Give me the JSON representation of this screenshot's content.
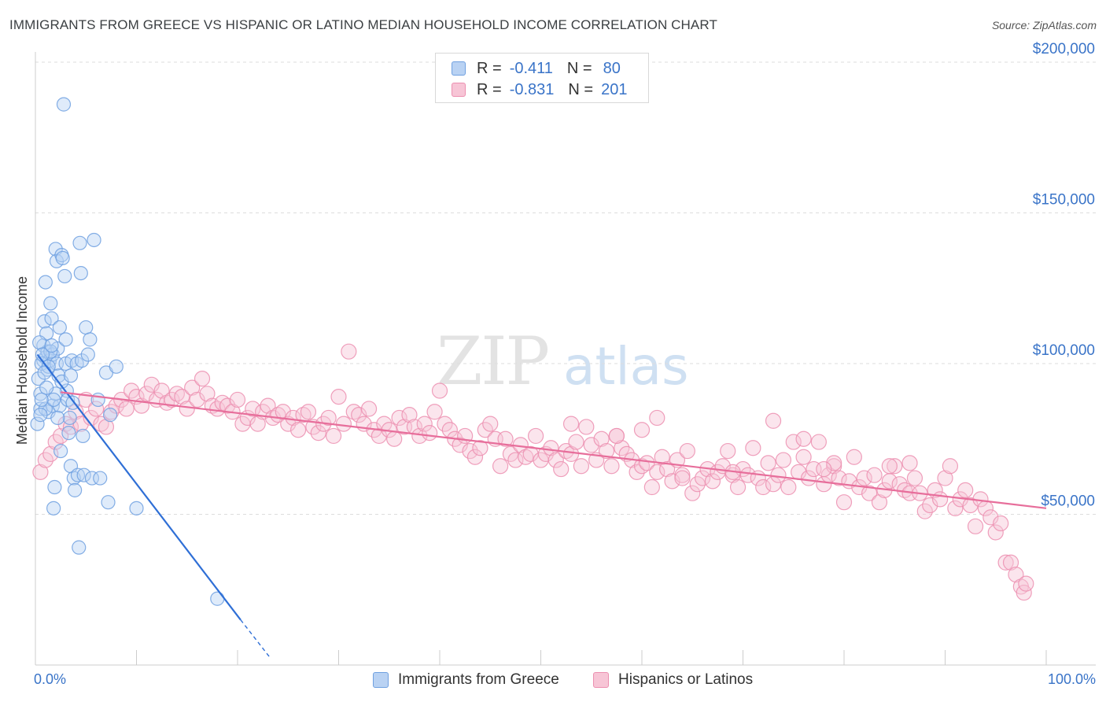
{
  "title": "IMMIGRANTS FROM GREECE VS HISPANIC OR LATINO MEDIAN HOUSEHOLD INCOME CORRELATION CHART",
  "source": "Source: ZipAtlas.com",
  "watermark": {
    "zip": "ZIP",
    "atlas": "atlas"
  },
  "legend": {
    "rows": [
      {
        "r_label": "R =",
        "r_value": "-0.411",
        "n_label": "N =",
        "n_value": "80",
        "color": "#6fa0e0",
        "fill": "#b9d2f3"
      },
      {
        "r_label": "R =",
        "r_value": "-0.831",
        "n_label": "N =",
        "n_value": "201",
        "color": "#ec8fb0",
        "fill": "#f7c5d6"
      }
    ]
  },
  "bottom_legend": [
    {
      "label": "Immigrants from Greece",
      "color": "#6fa0e0",
      "fill": "#b9d2f3"
    },
    {
      "label": "Hispanics or Latinos",
      "color": "#ec8fb0",
      "fill": "#f7c5d6"
    }
  ],
  "chart_data": {
    "type": "scatter",
    "title": "IMMIGRANTS FROM GREECE VS HISPANIC OR LATINO MEDIAN HOUSEHOLD INCOME CORRELATION CHART",
    "xlabel": "",
    "ylabel": "Median Household Income",
    "xlim": [
      0,
      100
    ],
    "ylim": [
      0,
      210000
    ],
    "x_tick_labels": [
      "0.0%",
      "100.0%"
    ],
    "y_ticks": [
      50000,
      100000,
      150000,
      200000
    ],
    "y_tick_labels": [
      "$50,000",
      "$100,000",
      "$150,000",
      "$200,000"
    ],
    "grid": "horizontal dashed",
    "series": [
      {
        "name": "Immigrants from Greece",
        "color": "#6fa0e0",
        "fill": "#b9d2f3",
        "trend": {
          "x": [
            0.2,
            20.3
          ],
          "y": [
            103000,
            15000
          ],
          "extended_to": [
            23.2,
            2500
          ]
        },
        "points": [
          [
            0.2,
            80000
          ],
          [
            0.5,
            90000
          ],
          [
            0.5,
            85000
          ],
          [
            0.8,
            101000
          ],
          [
            0.8,
            106000
          ],
          [
            0.9,
            114000
          ],
          [
            1.0,
            102000
          ],
          [
            1.0,
            127000
          ],
          [
            1.1,
            110000
          ],
          [
            1.2,
            104000
          ],
          [
            1.2,
            98000
          ],
          [
            1.3,
            84000
          ],
          [
            1.4,
            101000
          ],
          [
            1.5,
            120000
          ],
          [
            1.6,
            115000
          ],
          [
            1.7,
            103000
          ],
          [
            1.7,
            86000
          ],
          [
            1.8,
            52000
          ],
          [
            1.9,
            59000
          ],
          [
            2.0,
            138000
          ],
          [
            2.1,
            134000
          ],
          [
            2.1,
            100000
          ],
          [
            2.2,
            105000
          ],
          [
            2.3,
            96000
          ],
          [
            2.4,
            86000
          ],
          [
            2.5,
            71000
          ],
          [
            2.6,
            136000
          ],
          [
            2.7,
            135000
          ],
          [
            2.8,
            186000
          ],
          [
            2.9,
            129000
          ],
          [
            3.0,
            100000
          ],
          [
            3.1,
            91000
          ],
          [
            3.2,
            88000
          ],
          [
            3.3,
            77000
          ],
          [
            3.4,
            82000
          ],
          [
            3.5,
            66000
          ],
          [
            3.6,
            101000
          ],
          [
            3.7,
            87000
          ],
          [
            3.8,
            62000
          ],
          [
            3.9,
            58000
          ],
          [
            4.1,
            100000
          ],
          [
            4.2,
            63000
          ],
          [
            4.3,
            39000
          ],
          [
            4.4,
            140000
          ],
          [
            4.5,
            130000
          ],
          [
            4.6,
            101000
          ],
          [
            4.7,
            76000
          ],
          [
            4.8,
            63000
          ],
          [
            5.0,
            112000
          ],
          [
            5.2,
            103000
          ],
          [
            5.4,
            108000
          ],
          [
            5.6,
            62000
          ],
          [
            5.8,
            141000
          ],
          [
            6.2,
            88000
          ],
          [
            6.4,
            62000
          ],
          [
            7.0,
            97000
          ],
          [
            7.2,
            54000
          ],
          [
            7.4,
            83000
          ],
          [
            8.0,
            99000
          ],
          [
            10.0,
            52000
          ],
          [
            18.0,
            22000
          ],
          [
            0.3,
            95000
          ],
          [
            0.6,
            100000
          ],
          [
            1.0,
            85000
          ],
          [
            1.5,
            104000
          ],
          [
            2.0,
            90000
          ],
          [
            0.4,
            107000
          ],
          [
            0.7,
            103000
          ],
          [
            1.3,
            99000
          ],
          [
            2.6,
            94000
          ],
          [
            3.0,
            108000
          ],
          [
            0.5,
            83000
          ],
          [
            1.1,
            92000
          ],
          [
            1.8,
            88000
          ],
          [
            2.2,
            82000
          ],
          [
            0.9,
            97000
          ],
          [
            1.6,
            106000
          ],
          [
            2.4,
            112000
          ],
          [
            3.5,
            96000
          ],
          [
            0.6,
            88000
          ]
        ]
      },
      {
        "name": "Hispanics or Latinos",
        "color": "#ec8fb0",
        "fill": "#f7c5d6",
        "trend": {
          "x": [
            2.5,
            100
          ],
          "y": [
            90500,
            52000
          ]
        },
        "points": [
          [
            0.5,
            64000
          ],
          [
            1.0,
            68000
          ],
          [
            1.5,
            70000
          ],
          [
            2.0,
            74000
          ],
          [
            2.5,
            76000
          ],
          [
            3.0,
            80000
          ],
          [
            3.5,
            79000
          ],
          [
            4.0,
            84000
          ],
          [
            4.5,
            80000
          ],
          [
            5.0,
            88000
          ],
          [
            5.5,
            82000
          ],
          [
            6.0,
            85000
          ],
          [
            6.5,
            80000
          ],
          [
            7.0,
            79000
          ],
          [
            7.5,
            84000
          ],
          [
            8.0,
            86000
          ],
          [
            8.5,
            88000
          ],
          [
            9.0,
            85000
          ],
          [
            9.5,
            91000
          ],
          [
            10.0,
            89000
          ],
          [
            10.5,
            86000
          ],
          [
            11.0,
            90000
          ],
          [
            11.5,
            93000
          ],
          [
            12.0,
            88000
          ],
          [
            12.5,
            91000
          ],
          [
            13.0,
            87000
          ],
          [
            13.5,
            88000
          ],
          [
            14.0,
            90000
          ],
          [
            14.5,
            89000
          ],
          [
            15.0,
            85000
          ],
          [
            15.5,
            92000
          ],
          [
            16.0,
            88000
          ],
          [
            16.5,
            95000
          ],
          [
            17.0,
            90000
          ],
          [
            17.5,
            86000
          ],
          [
            18.0,
            85000
          ],
          [
            18.5,
            87000
          ],
          [
            19.0,
            86000
          ],
          [
            19.5,
            84000
          ],
          [
            20.0,
            88000
          ],
          [
            20.5,
            80000
          ],
          [
            21.0,
            82000
          ],
          [
            21.5,
            85000
          ],
          [
            22.0,
            80000
          ],
          [
            22.5,
            84000
          ],
          [
            23.0,
            86000
          ],
          [
            23.5,
            82000
          ],
          [
            24.0,
            83000
          ],
          [
            24.5,
            84000
          ],
          [
            25.0,
            80000
          ],
          [
            25.5,
            82000
          ],
          [
            26.0,
            78000
          ],
          [
            26.5,
            83000
          ],
          [
            27.0,
            84000
          ],
          [
            27.5,
            79000
          ],
          [
            28.0,
            77000
          ],
          [
            28.5,
            80000
          ],
          [
            29.0,
            82000
          ],
          [
            29.5,
            76000
          ],
          [
            30.0,
            89000
          ],
          [
            30.5,
            80000
          ],
          [
            31.0,
            104000
          ],
          [
            31.5,
            84000
          ],
          [
            32.0,
            83000
          ],
          [
            32.5,
            80000
          ],
          [
            33.0,
            85000
          ],
          [
            33.5,
            78000
          ],
          [
            34.0,
            76000
          ],
          [
            34.5,
            80000
          ],
          [
            35.0,
            78000
          ],
          [
            35.5,
            75000
          ],
          [
            36.0,
            82000
          ],
          [
            36.5,
            79000
          ],
          [
            37.0,
            83000
          ],
          [
            37.5,
            79000
          ],
          [
            38.0,
            76000
          ],
          [
            38.5,
            80000
          ],
          [
            39.0,
            77000
          ],
          [
            39.5,
            84000
          ],
          [
            40.0,
            91000
          ],
          [
            40.5,
            80000
          ],
          [
            41.0,
            78000
          ],
          [
            41.5,
            75000
          ],
          [
            42.0,
            73000
          ],
          [
            42.5,
            76000
          ],
          [
            43.0,
            71000
          ],
          [
            43.5,
            69000
          ],
          [
            44.0,
            72000
          ],
          [
            44.5,
            78000
          ],
          [
            45.0,
            80000
          ],
          [
            45.5,
            75000
          ],
          [
            46.0,
            66000
          ],
          [
            46.5,
            75000
          ],
          [
            47.0,
            70000
          ],
          [
            47.5,
            68000
          ],
          [
            48.0,
            73000
          ],
          [
            48.5,
            69000
          ],
          [
            49.0,
            70000
          ],
          [
            49.5,
            76000
          ],
          [
            50.0,
            68000
          ],
          [
            50.5,
            70000
          ],
          [
            51.0,
            72000
          ],
          [
            51.5,
            68000
          ],
          [
            52.0,
            65000
          ],
          [
            52.5,
            71000
          ],
          [
            53.0,
            70000
          ],
          [
            53.5,
            74000
          ],
          [
            54.0,
            66000
          ],
          [
            54.5,
            79000
          ],
          [
            55.0,
            73000
          ],
          [
            55.5,
            68000
          ],
          [
            56.0,
            75000
          ],
          [
            56.5,
            71000
          ],
          [
            57.0,
            66000
          ],
          [
            57.5,
            76000
          ],
          [
            58.0,
            72000
          ],
          [
            58.5,
            70000
          ],
          [
            59.0,
            68000
          ],
          [
            59.5,
            64000
          ],
          [
            60.0,
            66000
          ],
          [
            60.5,
            67000
          ],
          [
            61.0,
            59000
          ],
          [
            61.5,
            64000
          ],
          [
            62.0,
            69000
          ],
          [
            62.5,
            65000
          ],
          [
            63.0,
            61000
          ],
          [
            63.5,
            68000
          ],
          [
            64.0,
            63000
          ],
          [
            64.5,
            71000
          ],
          [
            65.0,
            57000
          ],
          [
            65.5,
            60000
          ],
          [
            66.0,
            62000
          ],
          [
            66.5,
            65000
          ],
          [
            67.0,
            61000
          ],
          [
            67.5,
            64000
          ],
          [
            68.0,
            66000
          ],
          [
            68.5,
            71000
          ],
          [
            69.0,
            63000
          ],
          [
            69.5,
            59000
          ],
          [
            70.0,
            65000
          ],
          [
            70.5,
            63000
          ],
          [
            71.0,
            72000
          ],
          [
            71.5,
            62000
          ],
          [
            72.0,
            59000
          ],
          [
            72.5,
            67000
          ],
          [
            73.0,
            60000
          ],
          [
            73.5,
            63000
          ],
          [
            74.0,
            68000
          ],
          [
            74.5,
            59000
          ],
          [
            75.0,
            74000
          ],
          [
            75.5,
            64000
          ],
          [
            76.0,
            69000
          ],
          [
            76.5,
            62000
          ],
          [
            77.0,
            65000
          ],
          [
            77.5,
            74000
          ],
          [
            78.0,
            60000
          ],
          [
            78.5,
            63000
          ],
          [
            79.0,
            66000
          ],
          [
            79.5,
            62000
          ],
          [
            80.0,
            54000
          ],
          [
            80.5,
            61000
          ],
          [
            81.0,
            69000
          ],
          [
            81.5,
            59000
          ],
          [
            82.0,
            62000
          ],
          [
            82.5,
            57000
          ],
          [
            83.0,
            63000
          ],
          [
            83.5,
            54000
          ],
          [
            84.0,
            58000
          ],
          [
            84.5,
            61000
          ],
          [
            85.0,
            66000
          ],
          [
            85.5,
            60000
          ],
          [
            86.0,
            58000
          ],
          [
            86.5,
            57000
          ],
          [
            87.0,
            62000
          ],
          [
            87.5,
            57000
          ],
          [
            88.0,
            51000
          ],
          [
            88.5,
            53000
          ],
          [
            89.0,
            58000
          ],
          [
            89.5,
            55000
          ],
          [
            90.0,
            62000
          ],
          [
            90.5,
            66000
          ],
          [
            91.0,
            52000
          ],
          [
            91.5,
            55000
          ],
          [
            92.0,
            58000
          ],
          [
            92.5,
            53000
          ],
          [
            93.0,
            46000
          ],
          [
            93.5,
            55000
          ],
          [
            94.0,
            52000
          ],
          [
            94.5,
            49000
          ],
          [
            95.0,
            44000
          ],
          [
            95.5,
            47000
          ],
          [
            96.0,
            34000
          ],
          [
            96.5,
            34000
          ],
          [
            97.0,
            30000
          ],
          [
            97.5,
            26000
          ],
          [
            97.8,
            24000
          ],
          [
            98.0,
            27000
          ],
          [
            57.5,
            76000
          ],
          [
            60.0,
            78000
          ],
          [
            73.0,
            81000
          ],
          [
            64.0,
            62000
          ],
          [
            76.0,
            75000
          ],
          [
            69.0,
            64000
          ],
          [
            53.0,
            80000
          ],
          [
            61.5,
            82000
          ],
          [
            86.5,
            67000
          ],
          [
            79.0,
            67000
          ],
          [
            84.5,
            66000
          ],
          [
            78.0,
            65000
          ]
        ]
      }
    ]
  }
}
